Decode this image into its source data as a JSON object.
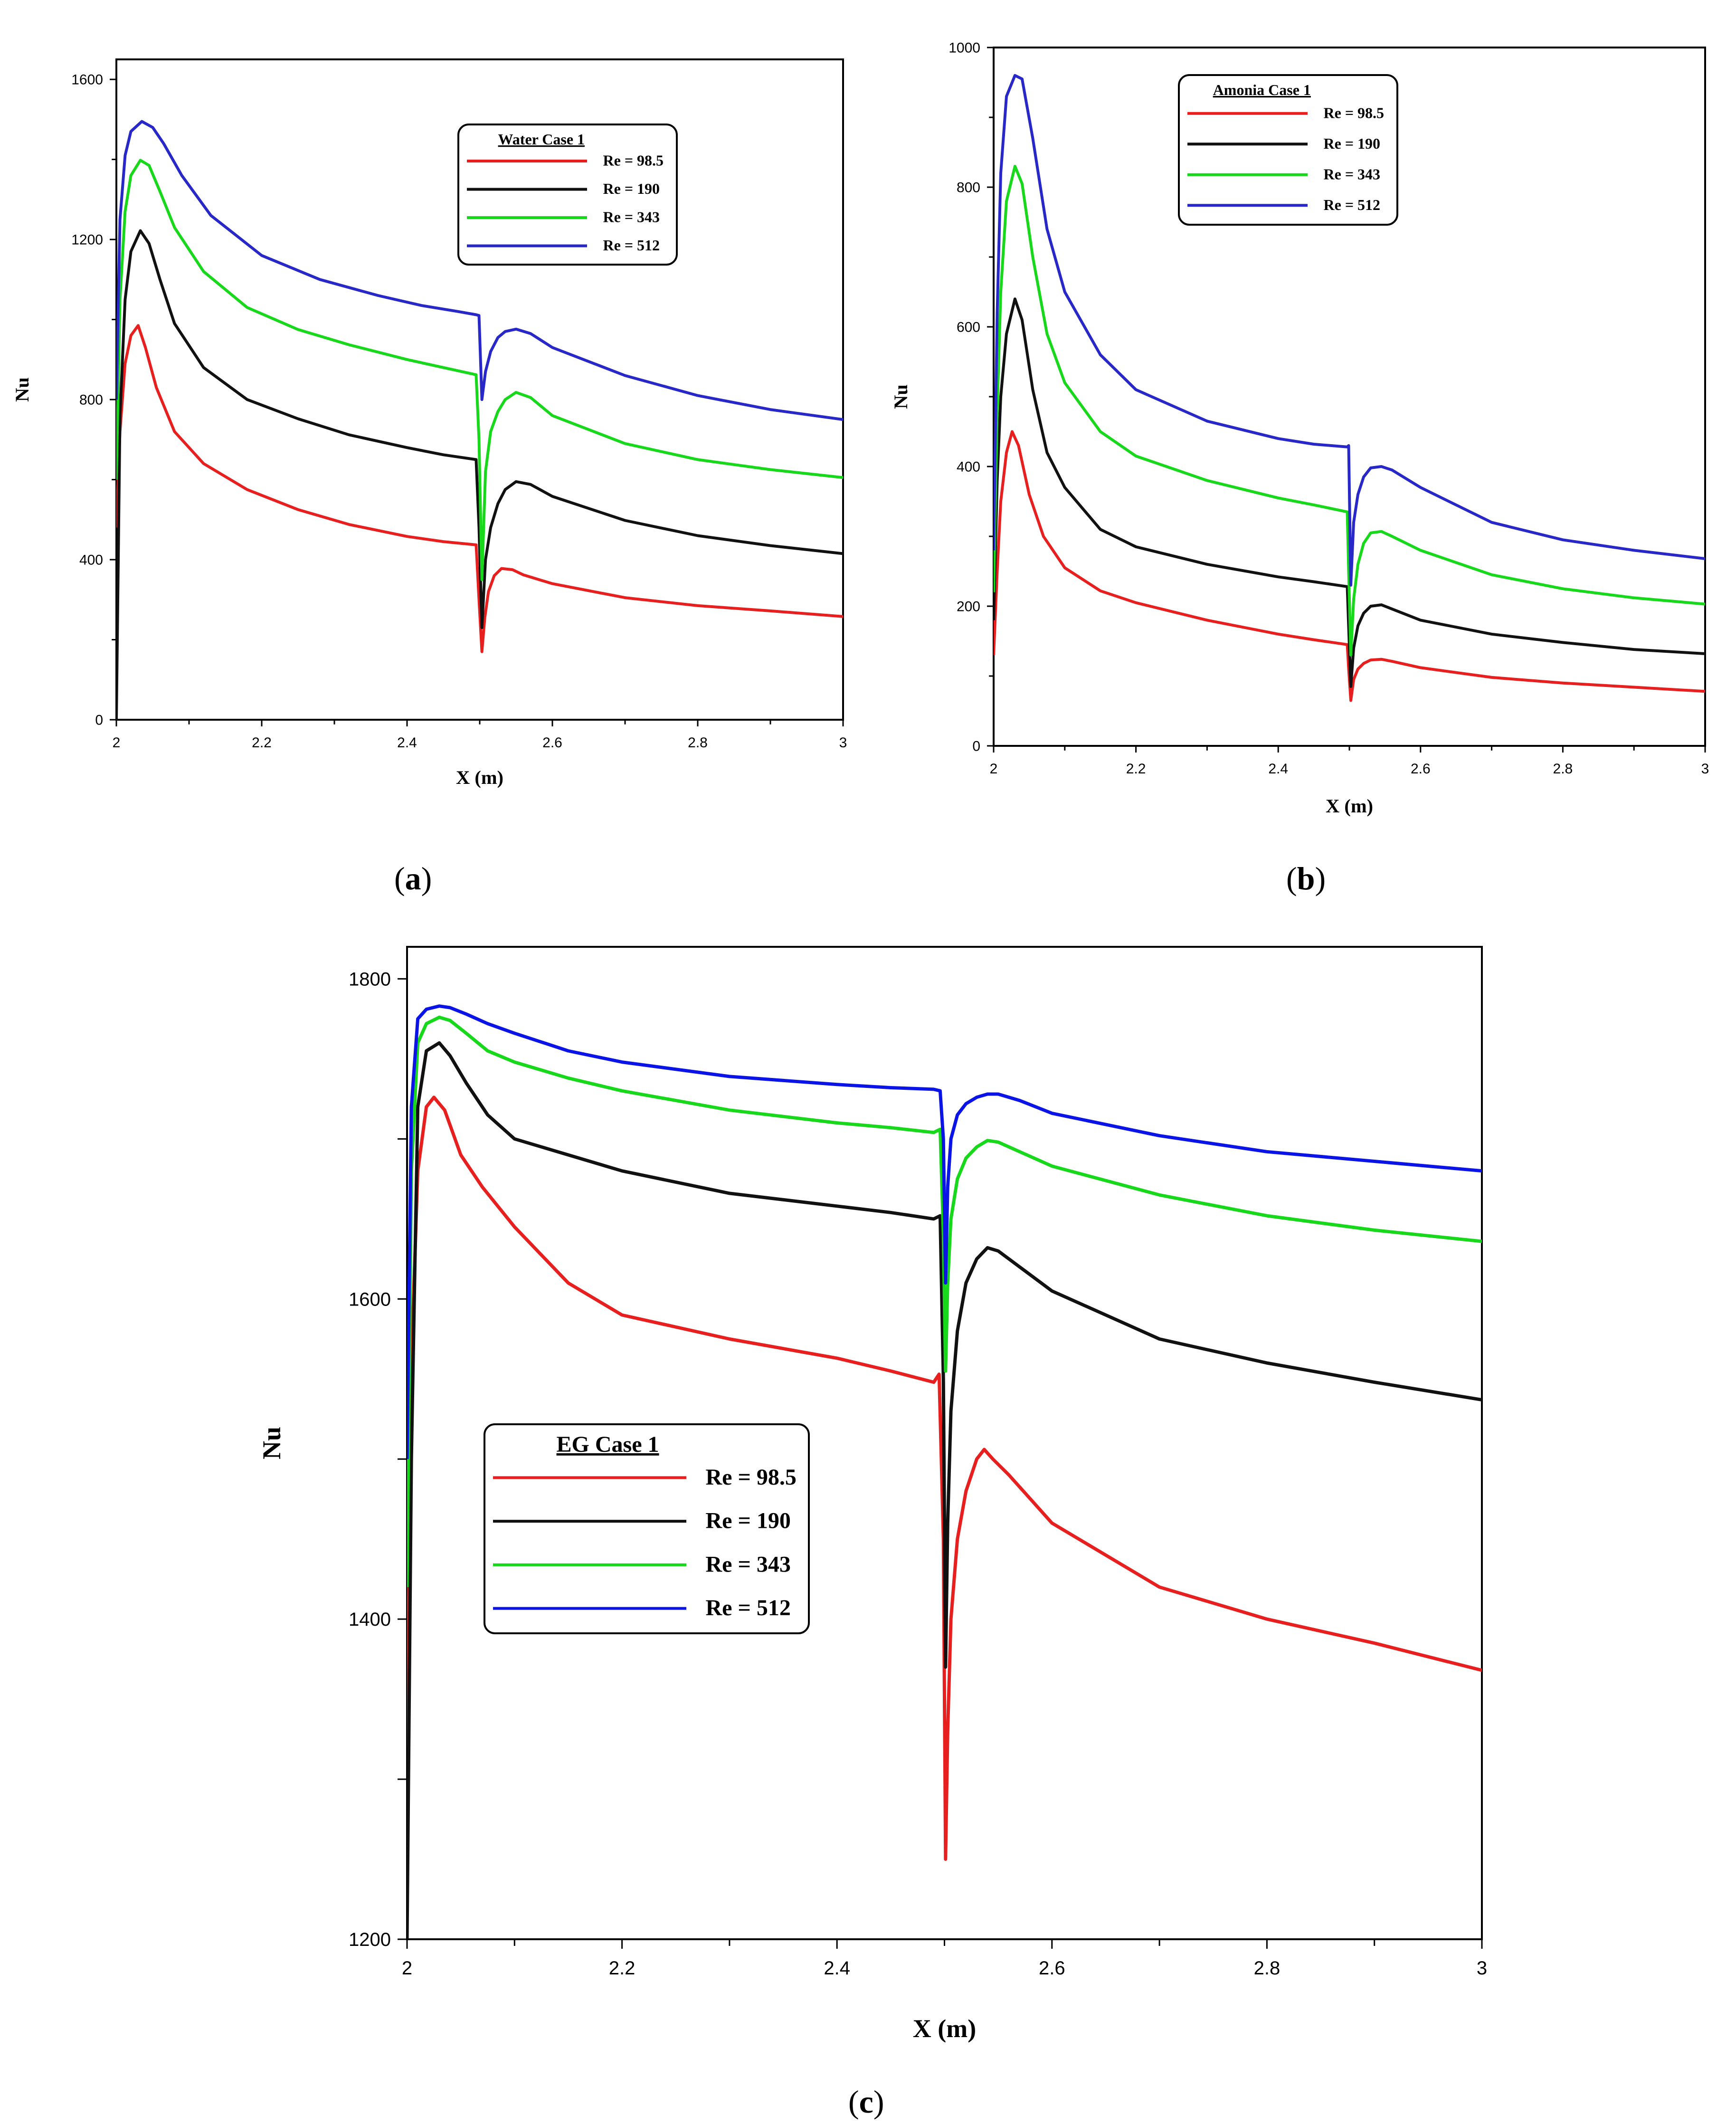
{
  "colors": {
    "red": "#e81f1f",
    "black": "#111111",
    "green": "#17d81a",
    "blue": "#2828c8",
    "blue_c": "#0a14e6"
  },
  "captions": {
    "a": {
      "open": "(",
      "letter": "a",
      "close": ")"
    },
    "b": {
      "open": "(",
      "letter": "b",
      "close": ")"
    },
    "c": {
      "open": "(",
      "letter": "c",
      "close": ")"
    }
  },
  "chart_data": [
    {
      "id": "a",
      "type": "line",
      "legend_title": "Water    Case 1",
      "xlabel": "X (m)",
      "ylabel": "Nu",
      "xlim": [
        2,
        3
      ],
      "ylim": [
        0,
        1650
      ],
      "xticks": [
        2,
        2.2,
        2.4,
        2.6,
        2.8,
        3
      ],
      "xtick_labels": [
        "2",
        "2.2",
        "2.4",
        "2.6",
        "2.8",
        "3"
      ],
      "yticks": [
        0,
        400,
        800,
        1200,
        1600
      ],
      "ytick_labels": [
        "0",
        "400",
        "800",
        "1200",
        "1600"
      ],
      "series": [
        {
          "name": "Re = 98.5",
          "color_key": "red",
          "x": [
            2,
            2.005,
            2.012,
            2.02,
            2.03,
            2.04,
            2.055,
            2.08,
            2.12,
            2.18,
            2.25,
            2.32,
            2.4,
            2.45,
            2.495,
            2.499,
            2.503,
            2.507,
            2.512,
            2.52,
            2.53,
            2.545,
            2.56,
            2.6,
            2.7,
            2.8,
            2.9,
            3
          ],
          "y": [
            480,
            720,
            890,
            960,
            985,
            930,
            830,
            720,
            640,
            575,
            525,
            488,
            458,
            445,
            437,
            300,
            170,
            255,
            320,
            360,
            378,
            375,
            362,
            340,
            305,
            285,
            272,
            258
          ]
        },
        {
          "name": "Re = 190",
          "color_key": "black",
          "x": [
            2,
            2.005,
            2.012,
            2.02,
            2.033,
            2.045,
            2.06,
            2.08,
            2.12,
            2.18,
            2.25,
            2.32,
            2.4,
            2.45,
            2.495,
            2.499,
            2.503,
            2.508,
            2.515,
            2.525,
            2.535,
            2.55,
            2.57,
            2.6,
            2.7,
            2.8,
            2.9,
            3
          ],
          "y": [
            0,
            760,
            1050,
            1170,
            1222,
            1190,
            1100,
            990,
            880,
            800,
            752,
            712,
            680,
            662,
            650,
            480,
            230,
            400,
            480,
            540,
            575,
            595,
            588,
            558,
            498,
            460,
            435,
            415
          ]
        },
        {
          "name": "Re = 343",
          "color_key": "green",
          "x": [
            2,
            2.005,
            2.012,
            2.02,
            2.033,
            2.045,
            2.06,
            2.08,
            2.12,
            2.18,
            2.25,
            2.32,
            2.4,
            2.45,
            2.495,
            2.499,
            2.503,
            2.508,
            2.515,
            2.525,
            2.535,
            2.55,
            2.57,
            2.6,
            2.7,
            2.8,
            2.9,
            3
          ],
          "y": [
            600,
            1050,
            1270,
            1360,
            1398,
            1385,
            1320,
            1230,
            1120,
            1030,
            975,
            937,
            900,
            880,
            862,
            700,
            350,
            620,
            720,
            770,
            800,
            818,
            805,
            760,
            690,
            650,
            625,
            605
          ]
        },
        {
          "name": "Re = 512",
          "color_key": "blue",
          "x": [
            2,
            2.005,
            2.012,
            2.02,
            2.035,
            2.05,
            2.065,
            2.09,
            2.13,
            2.2,
            2.28,
            2.36,
            2.42,
            2.47,
            2.495,
            2.499,
            2.503,
            2.508,
            2.515,
            2.525,
            2.535,
            2.55,
            2.57,
            2.6,
            2.7,
            2.8,
            2.9,
            3
          ],
          "y": [
            800,
            1250,
            1410,
            1470,
            1495,
            1480,
            1440,
            1360,
            1260,
            1160,
            1100,
            1060,
            1035,
            1020,
            1012,
            1010,
            800,
            870,
            920,
            955,
            970,
            976,
            965,
            930,
            860,
            810,
            775,
            750
          ]
        }
      ]
    },
    {
      "id": "b",
      "type": "line",
      "legend_title": "Amonia Case 1",
      "xlabel": "X (m)",
      "ylabel": "Nu",
      "xlim": [
        2,
        3
      ],
      "ylim": [
        0,
        1000
      ],
      "xticks": [
        2,
        2.2,
        2.4,
        2.6,
        2.8,
        3
      ],
      "xtick_labels": [
        "2",
        "2.2",
        "2.4",
        "2.6",
        "2.8",
        "3"
      ],
      "yticks": [
        0,
        200,
        400,
        600,
        800,
        1000
      ],
      "ytick_labels": [
        "0",
        "200",
        "400",
        "600",
        "800",
        "1000"
      ],
      "series": [
        {
          "name": "Re = 98.5",
          "color_key": "red",
          "x": [
            2,
            2.005,
            2.01,
            2.018,
            2.026,
            2.035,
            2.05,
            2.07,
            2.1,
            2.15,
            2.2,
            2.3,
            2.4,
            2.45,
            2.497,
            2.499,
            2.502,
            2.506,
            2.512,
            2.52,
            2.53,
            2.545,
            2.56,
            2.6,
            2.7,
            2.8,
            2.9,
            3
          ],
          "y": [
            130,
            250,
            350,
            420,
            450,
            430,
            360,
            300,
            255,
            222,
            205,
            180,
            160,
            152,
            145,
            110,
            65,
            95,
            110,
            118,
            123,
            124,
            121,
            112,
            98,
            90,
            84,
            78
          ]
        },
        {
          "name": "Re = 190",
          "color_key": "black",
          "x": [
            2,
            2.005,
            2.01,
            2.018,
            2.03,
            2.04,
            2.055,
            2.075,
            2.1,
            2.15,
            2.2,
            2.3,
            2.4,
            2.45,
            2.497,
            2.499,
            2.502,
            2.506,
            2.512,
            2.52,
            2.53,
            2.545,
            2.56,
            2.6,
            2.7,
            2.8,
            2.9,
            3
          ],
          "y": [
            180,
            380,
            500,
            590,
            640,
            610,
            510,
            420,
            370,
            310,
            285,
            260,
            242,
            235,
            228,
            170,
            85,
            140,
            172,
            190,
            200,
            202,
            196,
            180,
            160,
            148,
            138,
            132
          ]
        },
        {
          "name": "Re = 343",
          "color_key": "green",
          "x": [
            2,
            2.005,
            2.01,
            2.018,
            2.03,
            2.04,
            2.055,
            2.075,
            2.1,
            2.15,
            2.2,
            2.3,
            2.4,
            2.45,
            2.497,
            2.499,
            2.502,
            2.506,
            2.512,
            2.52,
            2.53,
            2.545,
            2.56,
            2.6,
            2.7,
            2.8,
            2.9,
            3
          ],
          "y": [
            220,
            480,
            650,
            780,
            830,
            805,
            700,
            590,
            520,
            450,
            415,
            380,
            355,
            345,
            335,
            250,
            130,
            210,
            260,
            290,
            305,
            307,
            300,
            280,
            245,
            225,
            212,
            203
          ]
        },
        {
          "name": "Re = 512",
          "color_key": "blue",
          "x": [
            2,
            2.005,
            2.01,
            2.018,
            2.03,
            2.04,
            2.055,
            2.075,
            2.1,
            2.15,
            2.2,
            2.3,
            2.4,
            2.45,
            2.497,
            2.499,
            2.502,
            2.506,
            2.512,
            2.52,
            2.53,
            2.545,
            2.56,
            2.6,
            2.7,
            2.8,
            2.9,
            3
          ],
          "y": [
            280,
            620,
            820,
            930,
            960,
            955,
            870,
            740,
            650,
            560,
            510,
            465,
            440,
            432,
            428,
            430,
            230,
            320,
            360,
            385,
            398,
            400,
            395,
            370,
            320,
            295,
            280,
            268
          ]
        }
      ]
    },
    {
      "id": "c",
      "type": "line",
      "legend_title": "EG        Case 1",
      "xlabel": "X (m)",
      "ylabel": "Nu",
      "xlim": [
        2,
        3
      ],
      "ylim": [
        1200,
        1820
      ],
      "xticks": [
        2,
        2.2,
        2.4,
        2.6,
        2.8,
        3
      ],
      "xtick_labels": [
        "2",
        "2.2",
        "2.4",
        "2.6",
        "2.8",
        "3"
      ],
      "yticks": [
        1200,
        1300,
        1400,
        1500,
        1600,
        1700,
        1800
      ],
      "ytick_labels": [
        "1200",
        "",
        "1400",
        "",
        "1600",
        "",
        "1800"
      ],
      "series": [
        {
          "name": "Re = 98.5",
          "color_key": "red",
          "x": [
            2,
            2.004,
            2.01,
            2.018,
            2.025,
            2.035,
            2.05,
            2.07,
            2.1,
            2.15,
            2.2,
            2.3,
            2.4,
            2.45,
            2.49,
            2.495,
            2.499,
            2.501,
            2.503,
            2.506,
            2.512,
            2.52,
            2.53,
            2.537,
            2.545,
            2.56,
            2.6,
            2.7,
            2.8,
            2.9,
            3
          ],
          "y": [
            1320,
            1560,
            1680,
            1720,
            1726,
            1718,
            1690,
            1670,
            1645,
            1610,
            1590,
            1575,
            1563,
            1555,
            1548,
            1553,
            1450,
            1250,
            1330,
            1400,
            1450,
            1480,
            1500,
            1506,
            1500,
            1490,
            1460,
            1420,
            1400,
            1385,
            1368
          ]
        },
        {
          "name": "Re = 190",
          "color_key": "black",
          "x": [
            2,
            2.004,
            2.01,
            2.018,
            2.03,
            2.04,
            2.055,
            2.075,
            2.1,
            2.15,
            2.2,
            2.3,
            2.4,
            2.45,
            2.49,
            2.496,
            2.499,
            2.501,
            2.503,
            2.506,
            2.512,
            2.52,
            2.53,
            2.54,
            2.55,
            2.57,
            2.6,
            2.7,
            2.8,
            2.9,
            3
          ],
          "y": [
            1200,
            1500,
            1720,
            1755,
            1760,
            1752,
            1735,
            1715,
            1700,
            1690,
            1680,
            1666,
            1658,
            1654,
            1650,
            1652,
            1550,
            1370,
            1460,
            1530,
            1580,
            1610,
            1625,
            1632,
            1630,
            1620,
            1605,
            1575,
            1560,
            1548,
            1537
          ]
        },
        {
          "name": "Re = 343",
          "color_key": "green",
          "x": [
            2,
            2.004,
            2.01,
            2.018,
            2.03,
            2.04,
            2.055,
            2.075,
            2.1,
            2.15,
            2.2,
            2.3,
            2.4,
            2.45,
            2.49,
            2.496,
            2.499,
            2.501,
            2.503,
            2.506,
            2.512,
            2.52,
            2.53,
            2.54,
            2.55,
            2.57,
            2.6,
            2.7,
            2.8,
            2.9,
            3
          ],
          "y": [
            1420,
            1680,
            1760,
            1772,
            1776,
            1774,
            1766,
            1755,
            1748,
            1738,
            1730,
            1718,
            1710,
            1707,
            1704,
            1706,
            1640,
            1555,
            1610,
            1650,
            1675,
            1688,
            1695,
            1699,
            1698,
            1692,
            1683,
            1665,
            1652,
            1643,
            1636
          ]
        },
        {
          "name": "Re = 512",
          "color_key": "blue_c",
          "x": [
            2,
            2.004,
            2.01,
            2.018,
            2.03,
            2.04,
            2.055,
            2.075,
            2.1,
            2.15,
            2.2,
            2.3,
            2.4,
            2.45,
            2.49,
            2.496,
            2.499,
            2.501,
            2.503,
            2.506,
            2.512,
            2.52,
            2.53,
            2.54,
            2.55,
            2.57,
            2.6,
            2.7,
            2.8,
            2.9,
            3
          ],
          "y": [
            1500,
            1720,
            1775,
            1781,
            1783,
            1782,
            1778,
            1772,
            1766,
            1755,
            1748,
            1739,
            1734,
            1732,
            1731,
            1730,
            1700,
            1610,
            1670,
            1700,
            1715,
            1722,
            1726,
            1728,
            1728,
            1724,
            1716,
            1702,
            1692,
            1686,
            1680
          ]
        }
      ]
    }
  ]
}
